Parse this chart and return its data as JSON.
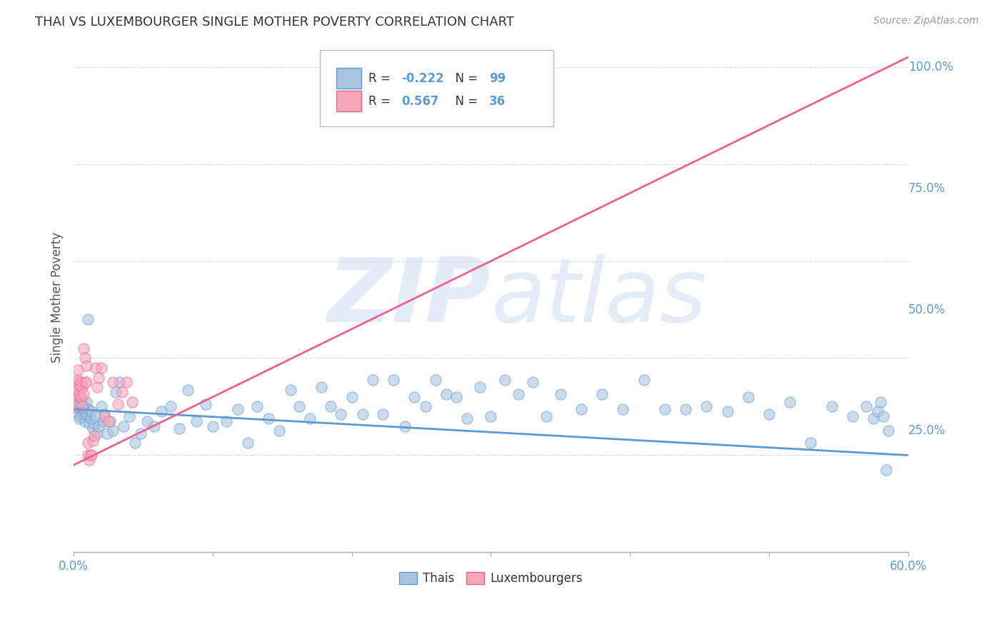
{
  "title": "THAI VS LUXEMBOURGER SINGLE MOTHER POVERTY CORRELATION CHART",
  "source": "Source: ZipAtlas.com",
  "ylabel": "Single Mother Poverty",
  "right_ytick_vals": [
    1.0,
    0.75,
    0.5,
    0.25
  ],
  "right_ytick_labels": [
    "100.0%",
    "75.0%",
    "50.0%",
    "25.0%"
  ],
  "watermark_zip": "ZIP",
  "watermark_atlas": "atlas",
  "legend_r_thai": "-0.222",
  "legend_n_thai": "99",
  "legend_r_lux": "0.567",
  "legend_n_lux": "36",
  "thai_color": "#aac4e0",
  "lux_color": "#f4a7b9",
  "thai_line_color": "#5b9bd5",
  "lux_line_color": "#f06090",
  "thai_scatter_x": [
    0.001,
    0.002,
    0.003,
    0.003,
    0.004,
    0.004,
    0.005,
    0.005,
    0.006,
    0.006,
    0.007,
    0.007,
    0.008,
    0.008,
    0.009,
    0.009,
    0.01,
    0.01,
    0.011,
    0.012,
    0.013,
    0.014,
    0.015,
    0.016,
    0.017,
    0.018,
    0.02,
    0.021,
    0.022,
    0.024,
    0.026,
    0.028,
    0.03,
    0.033,
    0.036,
    0.04,
    0.044,
    0.048,
    0.053,
    0.058,
    0.063,
    0.07,
    0.076,
    0.082,
    0.088,
    0.095,
    0.1,
    0.11,
    0.118,
    0.125,
    0.132,
    0.14,
    0.148,
    0.156,
    0.162,
    0.17,
    0.178,
    0.185,
    0.192,
    0.2,
    0.208,
    0.215,
    0.222,
    0.23,
    0.238,
    0.245,
    0.253,
    0.26,
    0.268,
    0.275,
    0.283,
    0.292,
    0.3,
    0.31,
    0.32,
    0.33,
    0.34,
    0.35,
    0.365,
    0.38,
    0.395,
    0.41,
    0.425,
    0.44,
    0.455,
    0.47,
    0.485,
    0.5,
    0.515,
    0.53,
    0.545,
    0.56,
    0.57,
    0.575,
    0.578,
    0.58,
    0.582,
    0.584,
    0.586
  ],
  "thai_scatter_y": [
    0.3,
    0.32,
    0.285,
    0.31,
    0.295,
    0.275,
    0.305,
    0.28,
    0.295,
    0.315,
    0.285,
    0.3,
    0.29,
    0.27,
    0.31,
    0.285,
    0.295,
    0.48,
    0.265,
    0.275,
    0.29,
    0.255,
    0.265,
    0.28,
    0.245,
    0.26,
    0.3,
    0.27,
    0.285,
    0.245,
    0.27,
    0.25,
    0.33,
    0.35,
    0.26,
    0.28,
    0.225,
    0.245,
    0.27,
    0.26,
    0.29,
    0.3,
    0.255,
    0.335,
    0.27,
    0.305,
    0.26,
    0.27,
    0.295,
    0.225,
    0.3,
    0.275,
    0.25,
    0.335,
    0.3,
    0.275,
    0.34,
    0.3,
    0.285,
    0.32,
    0.285,
    0.355,
    0.285,
    0.355,
    0.26,
    0.32,
    0.3,
    0.355,
    0.325,
    0.32,
    0.275,
    0.34,
    0.28,
    0.355,
    0.325,
    0.35,
    0.28,
    0.325,
    0.295,
    0.325,
    0.295,
    0.355,
    0.295,
    0.295,
    0.3,
    0.29,
    0.32,
    0.285,
    0.31,
    0.225,
    0.3,
    0.28,
    0.3,
    0.275,
    0.29,
    0.31,
    0.28,
    0.17,
    0.25
  ],
  "lux_scatter_x": [
    0.001,
    0.001,
    0.002,
    0.002,
    0.003,
    0.003,
    0.004,
    0.004,
    0.005,
    0.005,
    0.006,
    0.006,
    0.007,
    0.007,
    0.008,
    0.008,
    0.009,
    0.009,
    0.01,
    0.01,
    0.011,
    0.012,
    0.013,
    0.014,
    0.015,
    0.016,
    0.017,
    0.018,
    0.02,
    0.022,
    0.025,
    0.028,
    0.032,
    0.035,
    0.038,
    0.042
  ],
  "lux_scatter_y": [
    0.3,
    0.325,
    0.335,
    0.35,
    0.355,
    0.375,
    0.325,
    0.345,
    0.32,
    0.35,
    0.34,
    0.3,
    0.42,
    0.325,
    0.35,
    0.4,
    0.35,
    0.385,
    0.2,
    0.225,
    0.19,
    0.2,
    0.2,
    0.23,
    0.24,
    0.38,
    0.34,
    0.36,
    0.38,
    0.28,
    0.27,
    0.35,
    0.305,
    0.33,
    0.35,
    0.31
  ],
  "thai_trend_x": [
    0.0,
    0.6
  ],
  "thai_trend_y": [
    0.295,
    0.2
  ],
  "lux_trend_x": [
    0.0,
    0.6
  ],
  "lux_trend_y": [
    0.18,
    1.02
  ],
  "xlim": [
    0.0,
    0.6
  ],
  "ylim": [
    0.0,
    1.05
  ],
  "bg_color": "#ffffff",
  "grid_color": "#dddddd",
  "xtick_positions": [
    0.0,
    0.1,
    0.2,
    0.3,
    0.4,
    0.5,
    0.6
  ]
}
